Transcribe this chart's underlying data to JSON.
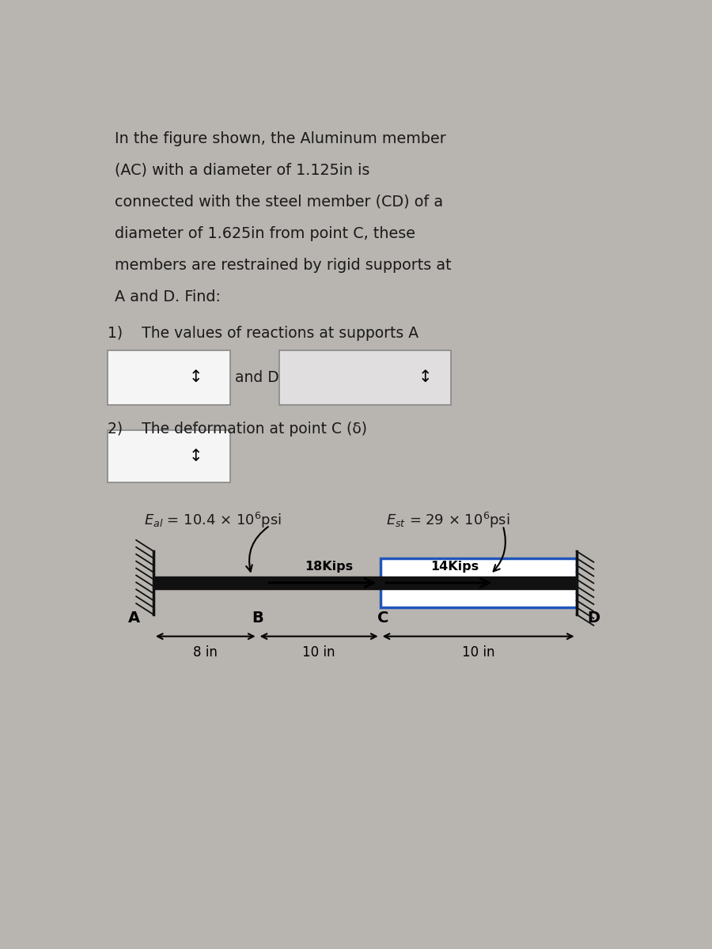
{
  "bg_color": "#b8b4b0",
  "text_color": "#1a1a1a",
  "box_text_color": "#2a2a6a",
  "problem_text_lines": [
    "In the figure shown, the Aluminum member",
    "(AC) with a diameter of 1.125in is",
    "connected with the steel member (CD) of a",
    "diameter of 1.625in from point C, these",
    "members are restrained by rigid supports at",
    "A and D. Find:"
  ],
  "item1_text": "1)    The values of reactions at supports A",
  "item1b_text": "and D",
  "item2_text": "2)    The deformation at point C (δ)",
  "E_al_label": "$E_{al}$",
  "E_al_val": " = 10.4 × 10$^6$psi",
  "E_st_label": "$E_{st}$",
  "E_st_val": " = 29 × 10$^6$psi",
  "force1": "18Kips",
  "force2": "14Kips",
  "point_labels": [
    "A",
    "B",
    "C",
    "D"
  ],
  "dims": [
    "8 in",
    "10 in",
    "10 in"
  ],
  "bar_color": "#111111",
  "steel_box_edge_color": "#2255bb",
  "support_color": "#111111",
  "white_box_edge": "#888888",
  "white_box_fill": "#f5f5f5",
  "white_box2_fill": "#e0dede"
}
